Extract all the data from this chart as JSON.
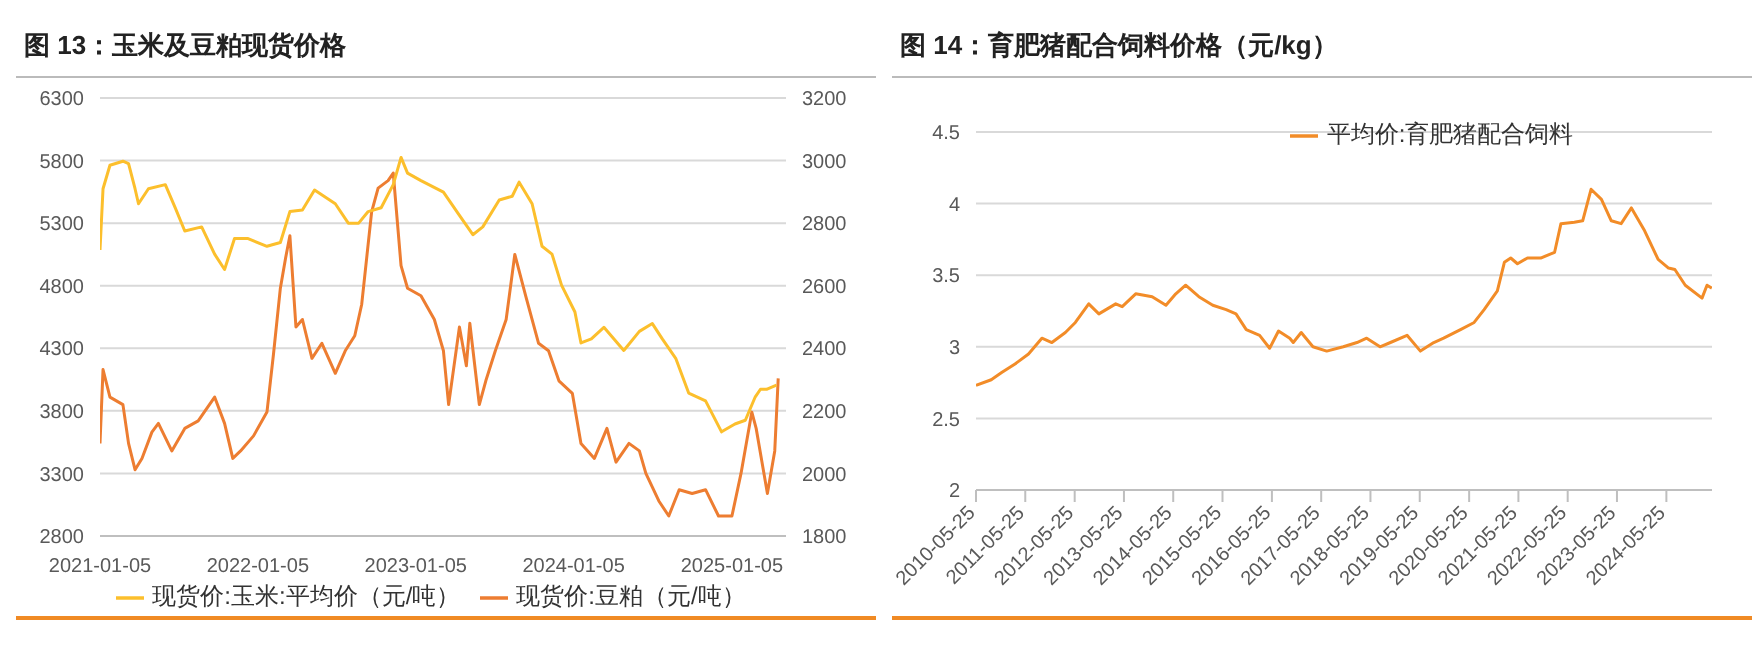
{
  "chart_data": [
    {
      "type": "line",
      "title": "图 13：玉米及豆粕现货价格",
      "xlim": [
        "2021-01-05",
        "2025-05-10"
      ],
      "xticks": [
        "2021-01-05",
        "2022-01-05",
        "2023-01-05",
        "2024-01-05",
        "2025-01-05"
      ],
      "ylim": [
        2800,
        6300
      ],
      "yticks": [
        2800,
        3300,
        3800,
        4300,
        4800,
        5300,
        5800,
        6300
      ],
      "y2lim": [
        1800,
        3200
      ],
      "y2ticks": [
        1800,
        2000,
        2200,
        2400,
        2600,
        2800,
        3000,
        3200
      ],
      "grid": "y",
      "legend": "bottom",
      "series": [
        {
          "name": "现货价:豆粕（元/吨）",
          "color": "#ed7d31",
          "x": [
            "2021-01-05",
            "2021-01-12",
            "2021-01-28",
            "2021-02-27",
            "2021-03-12",
            "2021-03-27",
            "2021-04-12",
            "2021-05-05",
            "2021-05-20",
            "2021-06-20",
            "2021-07-20",
            "2021-08-20",
            "2021-09-27",
            "2021-10-20",
            "2021-11-08",
            "2021-11-26",
            "2021-12-26",
            "2022-01-26",
            "2022-02-10",
            "2022-02-26",
            "2022-03-10",
            "2022-03-20",
            "2022-04-03",
            "2022-04-18",
            "2022-05-10",
            "2022-06-02",
            "2022-07-03",
            "2022-07-26",
            "2022-08-17",
            "2022-09-02",
            "2022-09-25",
            "2022-10-10",
            "2022-11-02",
            "2022-11-14",
            "2022-12-02",
            "2022-12-17",
            "2023-01-17",
            "2023-02-17",
            "2023-03-10",
            "2023-03-22",
            "2023-04-16",
            "2023-05-02",
            "2023-05-10",
            "2023-06-01",
            "2023-06-16",
            "2023-07-08",
            "2023-08-02",
            "2023-08-22",
            "2023-09-16",
            "2023-10-16",
            "2023-11-08",
            "2023-12-02",
            "2024-01-02",
            "2024-01-22",
            "2024-02-22",
            "2024-03-22",
            "2024-04-12",
            "2024-05-12",
            "2024-06-05",
            "2024-06-20",
            "2024-07-20",
            "2024-08-12",
            "2024-09-05",
            "2024-10-05",
            "2024-11-05",
            "2024-12-05",
            "2025-01-05",
            "2025-01-26",
            "2025-02-20",
            "2025-03-02",
            "2025-03-28",
            "2025-04-14",
            "2025-04-22"
          ],
          "values": [
            3540,
            4130,
            3910,
            3850,
            3540,
            3330,
            3420,
            3630,
            3700,
            3480,
            3660,
            3720,
            3910,
            3700,
            3420,
            3480,
            3600,
            3790,
            4250,
            4780,
            5020,
            5200,
            4470,
            4530,
            4220,
            4340,
            4100,
            4280,
            4400,
            4650,
            5390,
            5580,
            5640,
            5700,
            4960,
            4780,
            4720,
            4530,
            4280,
            3850,
            4470,
            4160,
            4500,
            3850,
            4040,
            4280,
            4530,
            5050,
            4720,
            4340,
            4280,
            4040,
            3940,
            3540,
            3420,
            3660,
            3390,
            3540,
            3480,
            3300,
            3080,
            2960,
            3170,
            3140,
            3170,
            2960,
            2960,
            3300,
            3790,
            3660,
            3140,
            3480,
            4060
          ]
        },
        {
          "name": "现货价:玉米:平均价（元/吨）",
          "color": "#fcbf2c",
          "axis": "y2",
          "x": [
            "2021-01-05",
            "2021-01-12",
            "2021-01-28",
            "2021-02-27",
            "2021-03-12",
            "2021-03-27",
            "2021-04-04",
            "2021-04-27",
            "2021-06-05",
            "2021-06-28",
            "2021-07-20",
            "2021-08-28",
            "2021-09-27",
            "2021-10-20",
            "2021-11-12",
            "2021-12-12",
            "2022-01-26",
            "2022-02-26",
            "2022-03-20",
            "2022-04-18",
            "2022-05-16",
            "2022-07-03",
            "2022-08-02",
            "2022-08-26",
            "2022-09-17",
            "2022-10-17",
            "2022-11-14",
            "2022-12-02",
            "2022-12-17",
            "2023-01-17",
            "2023-03-10",
            "2023-04-16",
            "2023-05-17",
            "2023-06-09",
            "2023-07-17",
            "2023-08-16",
            "2023-09-01",
            "2023-10-01",
            "2023-10-24",
            "2023-11-16",
            "2023-12-08",
            "2024-01-08",
            "2024-01-22",
            "2024-02-15",
            "2024-03-15",
            "2024-04-30",
            "2024-06-05",
            "2024-07-05",
            "2024-07-28",
            "2024-08-28",
            "2024-09-27",
            "2024-11-05",
            "2024-12-12",
            "2025-01-12",
            "2025-02-05",
            "2025-02-28",
            "2025-03-12",
            "2025-03-26",
            "2025-04-18"
          ],
          "values": [
            2714,
            2910,
            2985,
            2998,
            2990,
            2910,
            2862,
            2910,
            2923,
            2849,
            2775,
            2788,
            2701,
            2652,
            2751,
            2751,
            2726,
            2738,
            2837,
            2842,
            2906,
            2862,
            2800,
            2800,
            2837,
            2849,
            2923,
            3010,
            2960,
            2936,
            2899,
            2825,
            2763,
            2788,
            2874,
            2886,
            2931,
            2862,
            2726,
            2701,
            2602,
            2516,
            2417,
            2430,
            2467,
            2393,
            2454,
            2479,
            2430,
            2368,
            2257,
            2232,
            2133,
            2158,
            2170,
            2245,
            2269,
            2269,
            2282
          ]
        }
      ]
    },
    {
      "type": "line",
      "title": "图 14：育肥猪配合饲料价格（元/kg）",
      "xlim": [
        "2010-05-25",
        "2025-04-28"
      ],
      "xticks": [
        "2010-05-25",
        "2011-05-25",
        "2012-05-25",
        "2013-05-25",
        "2014-05-25",
        "2015-05-25",
        "2016-05-25",
        "2017-05-25",
        "2018-05-25",
        "2019-05-25",
        "2020-05-25",
        "2021-05-25",
        "2022-05-25",
        "2023-05-25",
        "2024-05-25"
      ],
      "ylim": [
        2,
        4.5
      ],
      "yticks": [
        2,
        2.5,
        3,
        3.5,
        4,
        4.5
      ],
      "grid": "y",
      "legend": "top",
      "series": [
        {
          "name": "平均价:育肥猪配合饲料",
          "color": "#f28c28",
          "x": [
            "2010-05-25",
            "2010-09-15",
            "2010-12-01",
            "2011-03-10",
            "2011-06-18",
            "2011-09-25",
            "2011-12-08",
            "2012-03-17",
            "2012-05-30",
            "2012-09-06",
            "2012-11-20",
            "2013-03-25",
            "2013-05-12",
            "2013-08-20",
            "2013-12-20",
            "2014-04-01",
            "2014-06-13",
            "2014-08-25",
            "2014-12-01",
            "2015-03-14",
            "2015-06-21",
            "2015-09-02",
            "2015-11-17",
            "2016-02-24",
            "2016-05-08",
            "2016-07-13",
            "2016-10-04",
            "2016-10-30",
            "2016-12-28",
            "2017-03-25",
            "2017-07-05",
            "2017-11-05",
            "2018-02-14",
            "2018-04-27",
            "2018-08-04",
            "2018-10-20",
            "2019-02-20",
            "2019-05-30",
            "2019-09-06",
            "2019-11-18",
            "2020-03-22",
            "2020-07-01",
            "2020-09-13",
            "2020-12-20",
            "2021-02-10",
            "2021-03-29",
            "2021-05-18",
            "2021-07-31",
            "2021-11-06",
            "2022-02-17",
            "2022-04-05",
            "2022-07-13",
            "2022-09-13",
            "2022-11-14",
            "2023-01-30",
            "2023-04-13",
            "2023-06-25",
            "2023-09-09",
            "2023-12-16",
            "2024-03-25",
            "2024-06-10",
            "2024-07-27",
            "2024-10-12",
            "2025-02-13",
            "2025-03-22",
            "2025-04-27"
          ],
          "values": [
            2.73,
            2.77,
            2.82,
            2.88,
            2.95,
            3.06,
            3.03,
            3.1,
            3.17,
            3.3,
            3.23,
            3.3,
            3.28,
            3.37,
            3.35,
            3.29,
            3.37,
            3.43,
            3.35,
            3.29,
            3.26,
            3.23,
            3.12,
            3.08,
            2.99,
            3.11,
            3.06,
            3.03,
            3.1,
            3,
            2.97,
            3,
            3.03,
            3.06,
            3,
            3.03,
            3.08,
            2.97,
            3.03,
            3.06,
            3.12,
            3.17,
            3.26,
            3.39,
            3.59,
            3.62,
            3.58,
            3.62,
            3.62,
            3.66,
            3.86,
            3.87,
            3.88,
            4.1,
            4.03,
            3.88,
            3.86,
            3.97,
            3.81,
            3.61,
            3.55,
            3.54,
            3.43,
            3.34,
            3.43,
            3.41
          ]
        }
      ]
    }
  ]
}
